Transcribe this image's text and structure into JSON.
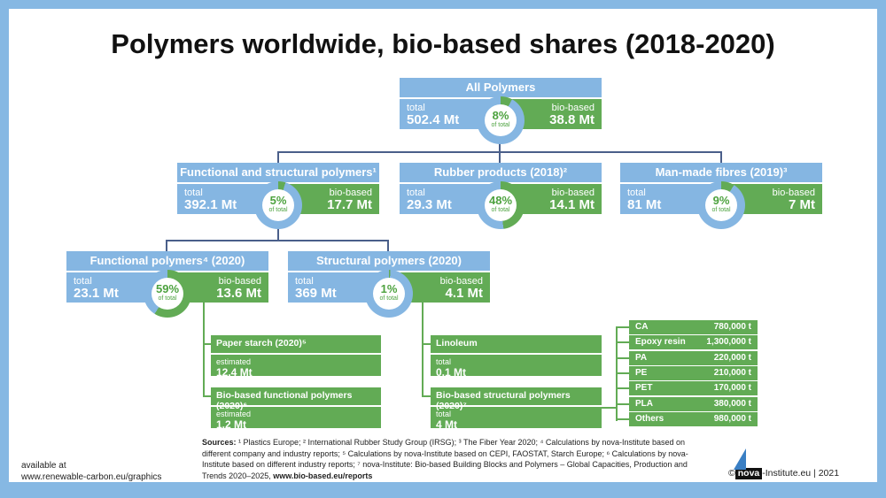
{
  "title": "Polymers worldwide, bio-based shares (2018-2020)",
  "colors": {
    "blue": "#85b6e2",
    "green": "#62ab55",
    "connector": "#4a5f8a",
    "frame": "#86b8e3"
  },
  "nodes": {
    "all": {
      "title": "All Polymers",
      "total_label": "total",
      "total": "502.4 Mt",
      "bio_label": "bio-based",
      "bio": "38.8 Mt",
      "pct": "8%",
      "pct_value": 8,
      "of": "of total"
    },
    "functional_structural": {
      "title": "Functional and structural polymers¹",
      "total_label": "total",
      "total": "392.1 Mt",
      "bio_label": "bio-based",
      "bio": "17.7 Mt",
      "pct": "5%",
      "pct_value": 5,
      "of": "of total"
    },
    "rubber": {
      "title": "Rubber products (2018)²",
      "total_label": "total",
      "total": "29.3 Mt",
      "bio_label": "bio-based",
      "bio": "14.1 Mt",
      "pct": "48%",
      "pct_value": 48,
      "of": "of total"
    },
    "fibres": {
      "title": "Man-made fibres (2019)³",
      "total_label": "total",
      "total": "81 Mt",
      "bio_label": "bio-based",
      "bio": "7 Mt",
      "pct": "9%",
      "pct_value": 9,
      "of": "of total"
    },
    "functional": {
      "title": "Functional polymers⁴ (2020)",
      "total_label": "total",
      "total": "23.1 Mt",
      "bio_label": "bio-based",
      "bio": "13.6 Mt",
      "pct": "59%",
      "pct_value": 59,
      "of": "of total"
    },
    "structural": {
      "title": "Structural polymers (2020)",
      "total_label": "total",
      "total": "369 Mt",
      "bio_label": "bio-based",
      "bio": "4.1 Mt",
      "pct": "1%",
      "pct_value": 1,
      "of": "of total"
    }
  },
  "sub": {
    "paper": {
      "title": "Paper starch (2020)⁵",
      "label": "estimated",
      "value": "12.4 Mt"
    },
    "biofunc": {
      "title": "Bio-based functional polymers (2020)⁶",
      "label": "estimated",
      "value": "1.2 Mt"
    },
    "linoleum": {
      "title": "Linoleum",
      "label": "total",
      "value": "0.1 Mt"
    },
    "biostruct": {
      "title": "Bio-based structural polymers (2020)⁷",
      "label": "total",
      "value": "4 Mt"
    }
  },
  "table": [
    {
      "name": "CA",
      "value": "780,000 t"
    },
    {
      "name": "Epoxy resin",
      "value": "1,300,000 t"
    },
    {
      "name": "PA",
      "value": "220,000 t"
    },
    {
      "name": "PE",
      "value": "210,000 t"
    },
    {
      "name": "PET",
      "value": "170,000 t"
    },
    {
      "name": "PLA",
      "value": "380,000 t"
    },
    {
      "name": "Others",
      "value": "980,000 t"
    }
  ],
  "footer": {
    "available": "available at",
    "url": "www.renewable-carbon.eu/graphics",
    "sources_label": "Sources:",
    "sources": "¹ Plastics Europe;   ² International Rubber Study Group (IRSG);   ³ The Fiber Year 2020;   ⁴ Calculations by nova-Institute based on different company and industry reports;   ⁵ Calculations by nova-Institute based on CEPI, FAOSTAT, Starch Europe;   ⁶ Calculations by nova-Institute based on different industry reports;   ⁷ nova-Institute: Bio-based Building Blocks and Polymers – Global Capacities, Production and Trends 2020–2025, ",
    "sources_link": "www.bio-based.eu/reports",
    "copyright": "© ",
    "logo": "nova",
    "credit": "-Institute.eu | 2021"
  }
}
